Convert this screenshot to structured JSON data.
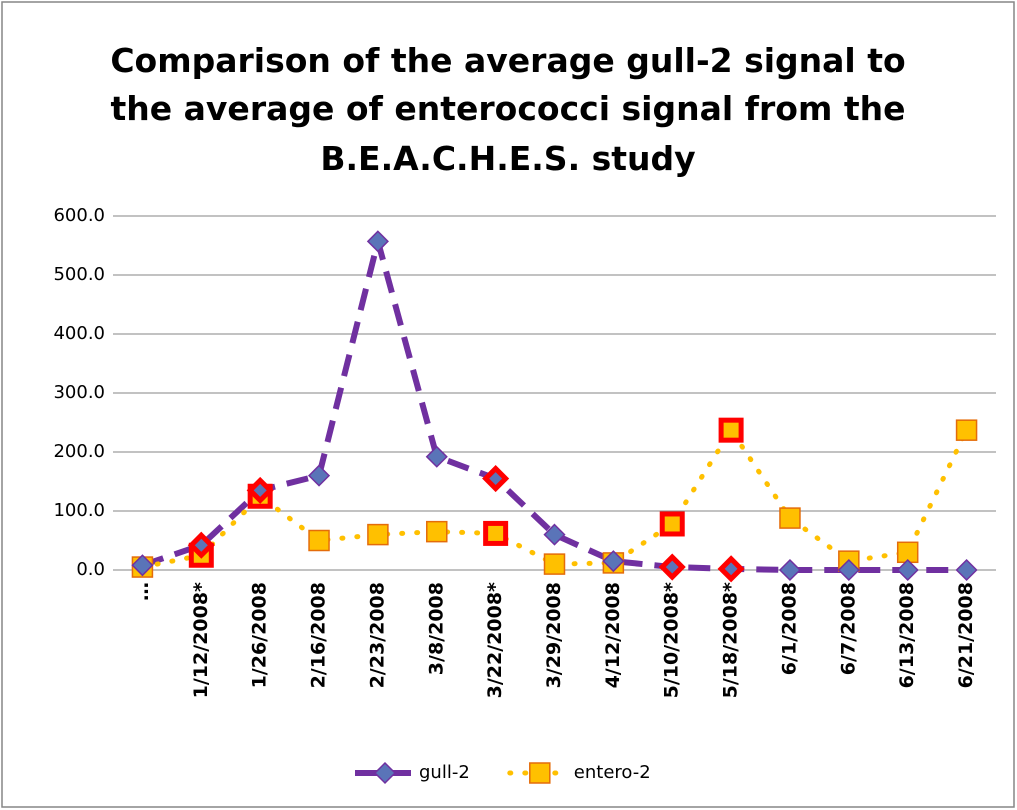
{
  "chart_data": {
    "type": "line",
    "title": [
      "Comparison  of the average gull-2 signal to",
      "the average of  enterococci signal from the",
      "B.E.A.C.H.E.S. study"
    ],
    "categories": [
      "…",
      "1/12/2008*",
      "1/26/2008",
      "2/16/2008",
      "2/23/2008",
      "3/8/2008",
      "3/22/2008*",
      "3/29/2008",
      "4/12/2008",
      "5/10/2008*",
      "5/18/2008*",
      "6/1/2008",
      "6/7/2008",
      "6/13/2008",
      "6/21/2008"
    ],
    "series": [
      {
        "name": "gull-2",
        "color": "#7030a0",
        "marker": "diamond",
        "marker_color": "#5a74b8",
        "line_style": "dash",
        "values": [
          8,
          42,
          135,
          160,
          557,
          192,
          155,
          60,
          15,
          5,
          2,
          0,
          0,
          0,
          0
        ]
      },
      {
        "name": "entero-2",
        "color": "#ffc000",
        "marker": "square",
        "marker_color": "#ffc000",
        "marker_edge": "#e46c0a",
        "line_style": "dot",
        "values": [
          5,
          25,
          125,
          50,
          60,
          65,
          62,
          10,
          12,
          78,
          237,
          88,
          15,
          30,
          237
        ]
      }
    ],
    "highlight_indices": [
      1,
      2,
      6,
      9,
      10
    ],
    "highlight_color": "#ff0000",
    "ylim": [
      0,
      600
    ],
    "yticks": [
      {
        "value": 0,
        "label": "0.0"
      },
      {
        "value": 100,
        "label": "100.0"
      },
      {
        "value": 200,
        "label": "200.0"
      },
      {
        "value": 300,
        "label": "300.0"
      },
      {
        "value": 400,
        "label": "400.0"
      },
      {
        "value": 500,
        "label": "500.0"
      },
      {
        "value": 600,
        "label": "600.0"
      }
    ],
    "grid": true,
    "legend": "bottom"
  }
}
